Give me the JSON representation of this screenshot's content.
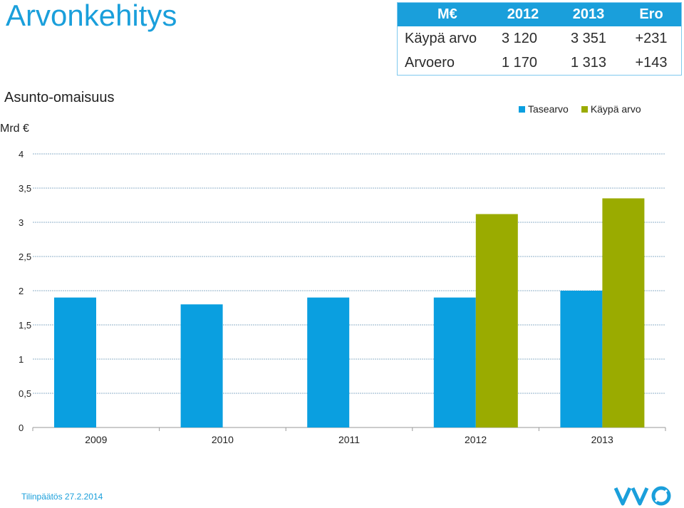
{
  "title": "Arvonkehitys",
  "subtitle": "Asunto-omaisuus",
  "unit": "Mrd €",
  "kpi_table": {
    "header": [
      "M€",
      "2012",
      "2013",
      "Ero"
    ],
    "rows": [
      [
        "Käypä arvo",
        "3 120",
        "3 351",
        "+231"
      ],
      [
        "Arvoero",
        "1 170",
        "1 313",
        "+143"
      ]
    ]
  },
  "footer": "Tilinpäätös 27.2.2014",
  "logo_text": "VVO",
  "colors": {
    "accent": "#1a9fdb",
    "tasearvo": "#0a9fe0",
    "kaypa_arvo": "#9aab00"
  },
  "chart_data": {
    "type": "bar",
    "categories": [
      "2009",
      "2010",
      "2011",
      "2012",
      "2013"
    ],
    "series": [
      {
        "name": "Tasearvo",
        "values": [
          1.9,
          1.8,
          1.9,
          1.9,
          2.0
        ]
      },
      {
        "name": "Käypä arvo",
        "values": [
          null,
          null,
          null,
          3.12,
          3.35
        ]
      }
    ],
    "ylim": [
      0,
      4
    ],
    "yticks": [
      0,
      0.5,
      1,
      1.5,
      2,
      2.5,
      3,
      3.5,
      4
    ],
    "ytick_labels": [
      "0",
      "0,5",
      "1",
      "1,5",
      "2",
      "2,5",
      "3",
      "3,5",
      "4"
    ],
    "ylabel": "Mrd €",
    "grid": true,
    "legend": "top-right"
  }
}
